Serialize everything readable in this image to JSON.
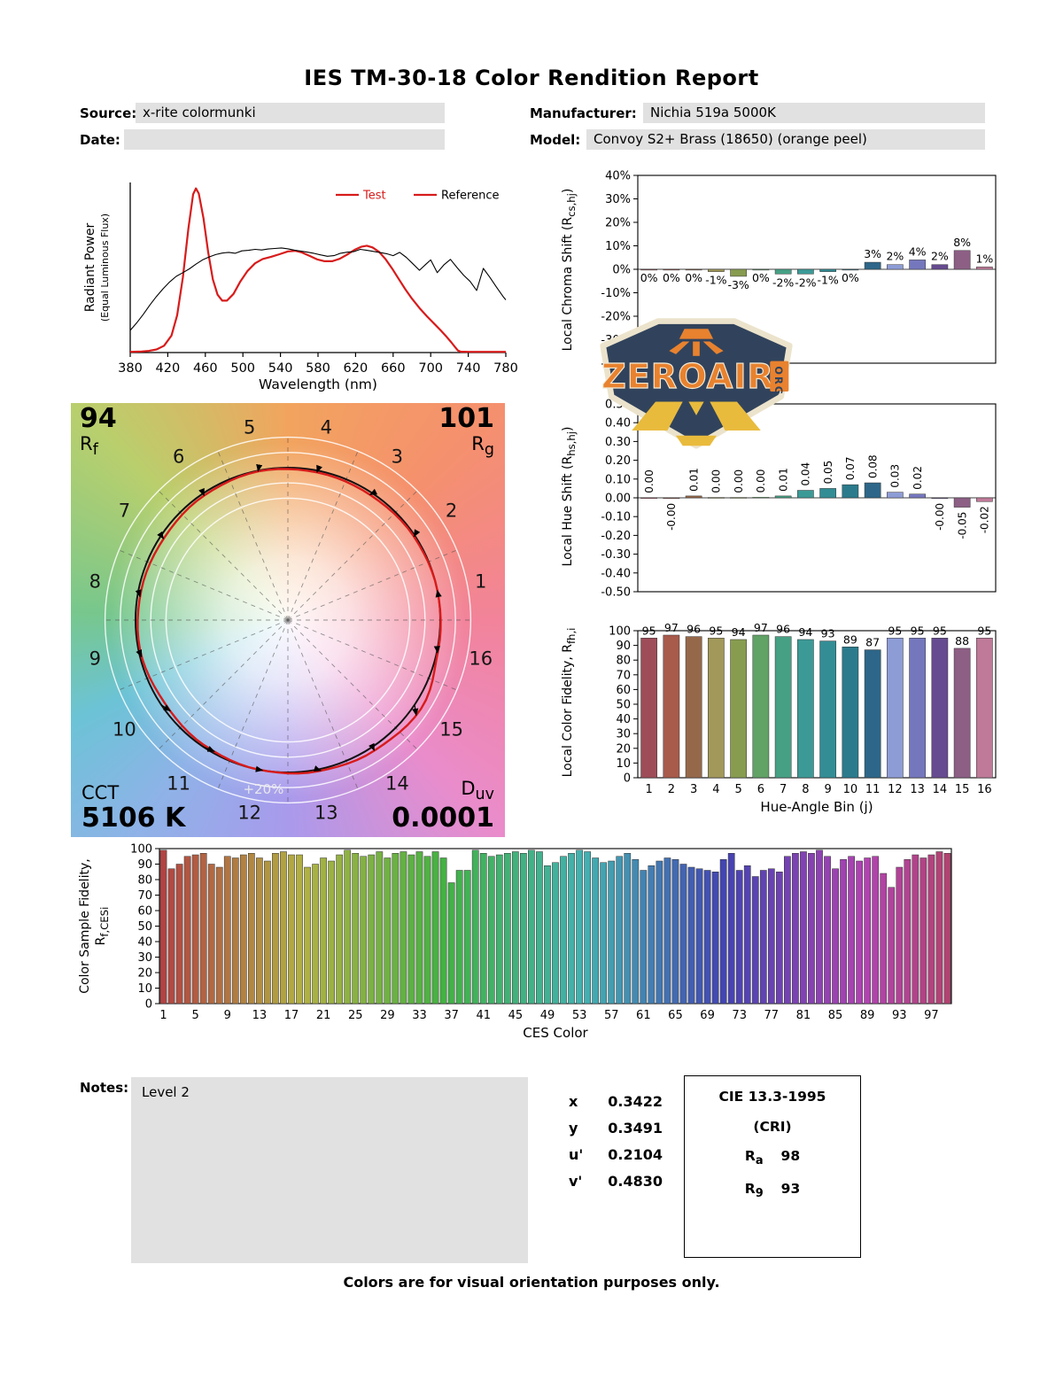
{
  "title": "IES TM-30-18 Color Rendition Report",
  "header": {
    "source_label": "Source:",
    "source_value": "x-rite colormunki",
    "manufacturer_label": "Manufacturer:",
    "manufacturer_value": "Nichia 519a 5000K",
    "date_label": "Date:",
    "date_value": "",
    "model_label": "Model:",
    "model_value": "Convoy S2+ Brass (18650) (orange peel)"
  },
  "logo": {
    "name": "ZEROAIR",
    "org": "ORG"
  },
  "cvg": {
    "rf_value": "94",
    "rf_label": "R",
    "rf_sub": "f",
    "rg_value": "101",
    "rg_label": "R",
    "rg_sub": "g",
    "cct_label": "CCT",
    "cct_value": "5106 K",
    "duv_label": "D",
    "duv_sub": "uv",
    "duv_value": "0.0001",
    "ring_label": "+20%",
    "bins": [
      1,
      2,
      3,
      4,
      5,
      6,
      7,
      8,
      9,
      10,
      11,
      12,
      13,
      14,
      15,
      16
    ],
    "test_radii": [
      1.0,
      0.992,
      0.983,
      0.988,
      0.995,
      0.985,
      0.975,
      0.982,
      0.99,
      0.975,
      0.988,
      1.0,
      1.012,
      1.028,
      1.05,
      1.006
    ],
    "test_color": "#d81b1b",
    "reference_color": "#111111"
  },
  "bin_colors": [
    "#9e4c58",
    "#a85a4b",
    "#96684a",
    "#a1985a",
    "#889c50",
    "#61a266",
    "#46a084",
    "#3c9a96",
    "#338d95",
    "#2b7b8c",
    "#2d6688",
    "#8e9cd6",
    "#7577bd",
    "#664b90",
    "#8d5f85",
    "#bf7a99"
  ],
  "chart_data": [
    {
      "id": "spd",
      "type": "line",
      "ylabel": "Radiant Power",
      "ylabel2": "(Equal Luminous Flux)",
      "xlabel": "Wavelength (nm)",
      "xlim": [
        380,
        780
      ],
      "ylim": [
        0,
        1
      ],
      "xticks": [
        380,
        420,
        460,
        500,
        540,
        580,
        620,
        660,
        700,
        740,
        780
      ],
      "legend": [
        {
          "label": "Test",
          "line_color": "#d81b1b",
          "text_color": "#d81b1b"
        },
        {
          "label": "Reference",
          "line_color": "#d81b1b",
          "text_color": "#000000"
        }
      ],
      "series": [
        {
          "name": "Test",
          "color": "#d81b1b",
          "width": 2.2,
          "points": [
            [
              380,
              0.004
            ],
            [
              392,
              0.006
            ],
            [
              400,
              0.01
            ],
            [
              408,
              0.018
            ],
            [
              416,
              0.04
            ],
            [
              424,
              0.1
            ],
            [
              430,
              0.22
            ],
            [
              436,
              0.44
            ],
            [
              442,
              0.73
            ],
            [
              447,
              0.93
            ],
            [
              450,
              0.965
            ],
            [
              453,
              0.935
            ],
            [
              458,
              0.79
            ],
            [
              463,
              0.59
            ],
            [
              468,
              0.43
            ],
            [
              473,
              0.34
            ],
            [
              478,
              0.305
            ],
            [
              483,
              0.305
            ],
            [
              490,
              0.345
            ],
            [
              497,
              0.415
            ],
            [
              505,
              0.48
            ],
            [
              513,
              0.525
            ],
            [
              521,
              0.55
            ],
            [
              530,
              0.563
            ],
            [
              539,
              0.578
            ],
            [
              548,
              0.595
            ],
            [
              556,
              0.598
            ],
            [
              563,
              0.588
            ],
            [
              571,
              0.568
            ],
            [
              579,
              0.548
            ],
            [
              587,
              0.537
            ],
            [
              595,
              0.537
            ],
            [
              603,
              0.551
            ],
            [
              611,
              0.576
            ],
            [
              619,
              0.604
            ],
            [
              626,
              0.622
            ],
            [
              632,
              0.628
            ],
            [
              638,
              0.618
            ],
            [
              645,
              0.592
            ],
            [
              652,
              0.549
            ],
            [
              659,
              0.494
            ],
            [
              666,
              0.432
            ],
            [
              673,
              0.372
            ],
            [
              680,
              0.317
            ],
            [
              688,
              0.262
            ],
            [
              696,
              0.213
            ],
            [
              704,
              0.168
            ],
            [
              711,
              0.128
            ],
            [
              717,
              0.092
            ],
            [
              722,
              0.06
            ],
            [
              726,
              0.032
            ],
            [
              729,
              0.012
            ],
            [
              732,
              0.005
            ],
            [
              740,
              0.004
            ],
            [
              760,
              0.004
            ],
            [
              780,
              0.004
            ]
          ]
        },
        {
          "name": "Reference",
          "color": "#000000",
          "width": 1.1,
          "points": [
            [
              380,
              0.13
            ],
            [
              387,
              0.175
            ],
            [
              394,
              0.225
            ],
            [
              401,
              0.28
            ],
            [
              408,
              0.33
            ],
            [
              415,
              0.375
            ],
            [
              422,
              0.415
            ],
            [
              429,
              0.448
            ],
            [
              436,
              0.47
            ],
            [
              443,
              0.492
            ],
            [
              450,
              0.52
            ],
            [
              457,
              0.545
            ],
            [
              464,
              0.562
            ],
            [
              471,
              0.576
            ],
            [
              478,
              0.585
            ],
            [
              485,
              0.589
            ],
            [
              492,
              0.584
            ],
            [
              499,
              0.598
            ],
            [
              506,
              0.601
            ],
            [
              513,
              0.607
            ],
            [
              520,
              0.603
            ],
            [
              527,
              0.609
            ],
            [
              534,
              0.612
            ],
            [
              541,
              0.615
            ],
            [
              548,
              0.61
            ],
            [
              555,
              0.602
            ],
            [
              562,
              0.596
            ],
            [
              569,
              0.59
            ],
            [
              576,
              0.583
            ],
            [
              583,
              0.574
            ],
            [
              590,
              0.566
            ],
            [
              597,
              0.57
            ],
            [
              604,
              0.584
            ],
            [
              611,
              0.59
            ],
            [
              618,
              0.593
            ],
            [
              625,
              0.607
            ],
            [
              632,
              0.601
            ],
            [
              639,
              0.595
            ],
            [
              646,
              0.588
            ],
            [
              653,
              0.581
            ],
            [
              660,
              0.57
            ],
            [
              667,
              0.589
            ],
            [
              674,
              0.56
            ],
            [
              681,
              0.522
            ],
            [
              688,
              0.484
            ],
            [
              695,
              0.52
            ],
            [
              700,
              0.545
            ],
            [
              707,
              0.47
            ],
            [
              714,
              0.515
            ],
            [
              721,
              0.548
            ],
            [
              728,
              0.5
            ],
            [
              735,
              0.455
            ],
            [
              742,
              0.418
            ],
            [
              749,
              0.365
            ],
            [
              756,
              0.495
            ],
            [
              763,
              0.442
            ],
            [
              770,
              0.385
            ],
            [
              777,
              0.33
            ],
            [
              780,
              0.31
            ]
          ]
        }
      ]
    },
    {
      "id": "chroma-shift-chart",
      "type": "bar",
      "ylabel_pre": "Local Chroma Shift (R",
      "ylabel_sub": "cs,hj",
      "ylabel_post": ")",
      "ylim": [
        -40,
        40
      ],
      "ytick_step": 10,
      "categories": [
        1,
        2,
        3,
        4,
        5,
        6,
        7,
        8,
        9,
        10,
        11,
        12,
        13,
        14,
        15,
        16
      ],
      "values": [
        0,
        0,
        0,
        -1,
        -3,
        0,
        -2,
        -2,
        -1,
        0,
        3,
        2,
        4,
        2,
        8,
        1
      ],
      "labels": [
        "0%",
        "0%",
        "0%",
        "-1%",
        "-3%",
        "0%",
        "-2%",
        "-2%",
        "-1%",
        "0%",
        "3%",
        "2%",
        "4%",
        "2%",
        "8%",
        "1%"
      ]
    },
    {
      "id": "hue-shift-chart",
      "type": "bar",
      "ylabel_pre": "Local Hue Shift (R",
      "ylabel_sub": "hs,hj",
      "ylabel_post": ")",
      "ylim": [
        -0.5,
        0.5
      ],
      "ytick_step": 0.1,
      "categories": [
        1,
        2,
        3,
        4,
        5,
        6,
        7,
        8,
        9,
        10,
        11,
        12,
        13,
        14,
        15,
        16
      ],
      "values": [
        0.001,
        -0.004,
        0.01,
        0.002,
        0.002,
        0.003,
        0.01,
        0.04,
        0.05,
        0.07,
        0.08,
        0.03,
        0.02,
        -0.004,
        -0.05,
        -0.02
      ],
      "labels": [
        "0.00",
        "-0.00",
        "0.01",
        "0.00",
        "0.00",
        "0.00",
        "0.01",
        "0.04",
        "0.05",
        "0.07",
        "0.08",
        "0.03",
        "0.02",
        "-0.00",
        "-0.05",
        "-0.02"
      ]
    },
    {
      "id": "local-fidelity-chart",
      "type": "bar",
      "ylabel_pre": "Local Color Fidelity, R",
      "ylabel_sub": "fh,i",
      "ylabel_post": "",
      "ylim": [
        0,
        100
      ],
      "ytick_step": 10,
      "xlabel": "Hue-Angle Bin (j)",
      "categories": [
        1,
        2,
        3,
        4,
        5,
        6,
        7,
        8,
        9,
        10,
        11,
        12,
        13,
        14,
        15,
        16
      ],
      "values": [
        95,
        97,
        96,
        95,
        94,
        97,
        96,
        94,
        93,
        89,
        87,
        95,
        95,
        95,
        88,
        95
      ],
      "labels": [
        "95",
        "97",
        "96",
        "95",
        "94",
        "97",
        "96",
        "94",
        "93",
        "89",
        "87",
        "95",
        "95",
        "95",
        "88",
        "95"
      ]
    },
    {
      "id": "ces-chart",
      "type": "bar",
      "ylabel_pre": "Color Sample Fidelity, R",
      "ylabel_sub": "f,CESi",
      "ylabel_post": "",
      "ylim": [
        0,
        100
      ],
      "ytick_step": 10,
      "xlabel": "CES Color",
      "xtick_start": 1,
      "xtick_step": 4,
      "values": [
        99,
        87,
        90,
        95,
        96,
        97,
        90,
        88,
        95,
        94,
        96,
        97,
        94,
        92,
        97,
        98,
        96,
        96,
        88,
        90,
        94,
        92,
        96,
        99,
        97,
        95,
        96,
        98,
        94,
        97,
        98,
        96,
        98,
        95,
        98,
        94,
        78,
        86,
        86,
        99,
        97,
        95,
        96,
        97,
        98,
        97,
        99,
        98,
        89,
        91,
        95,
        97,
        99,
        98,
        94,
        91,
        92,
        95,
        97,
        93,
        86,
        89,
        92,
        94,
        93,
        90,
        88,
        87,
        86,
        85,
        93,
        97,
        86,
        89,
        82,
        86,
        87,
        85,
        95,
        97,
        98,
        97,
        99,
        95,
        87,
        93,
        95,
        92,
        94,
        95,
        84,
        75,
        88,
        93,
        96,
        94,
        96,
        98,
        97
      ]
    }
  ],
  "notes": {
    "label": "Notes:",
    "value": "Level 2"
  },
  "chromaticity": [
    {
      "label": "x",
      "value": "0.3422"
    },
    {
      "label": "y",
      "value": "0.3491"
    },
    {
      "label": "u'",
      "value": "0.2104"
    },
    {
      "label": "v'",
      "value": "0.4830"
    }
  ],
  "cri": {
    "title": "CIE 13.3-1995",
    "subtitle": "(CRI)",
    "ra_label": "R",
    "ra_sub": "a",
    "ra_value": "98",
    "r9_label": "R",
    "r9_sub": "9",
    "r9_value": "93"
  },
  "footer": "Colors are for visual orientation purposes only."
}
